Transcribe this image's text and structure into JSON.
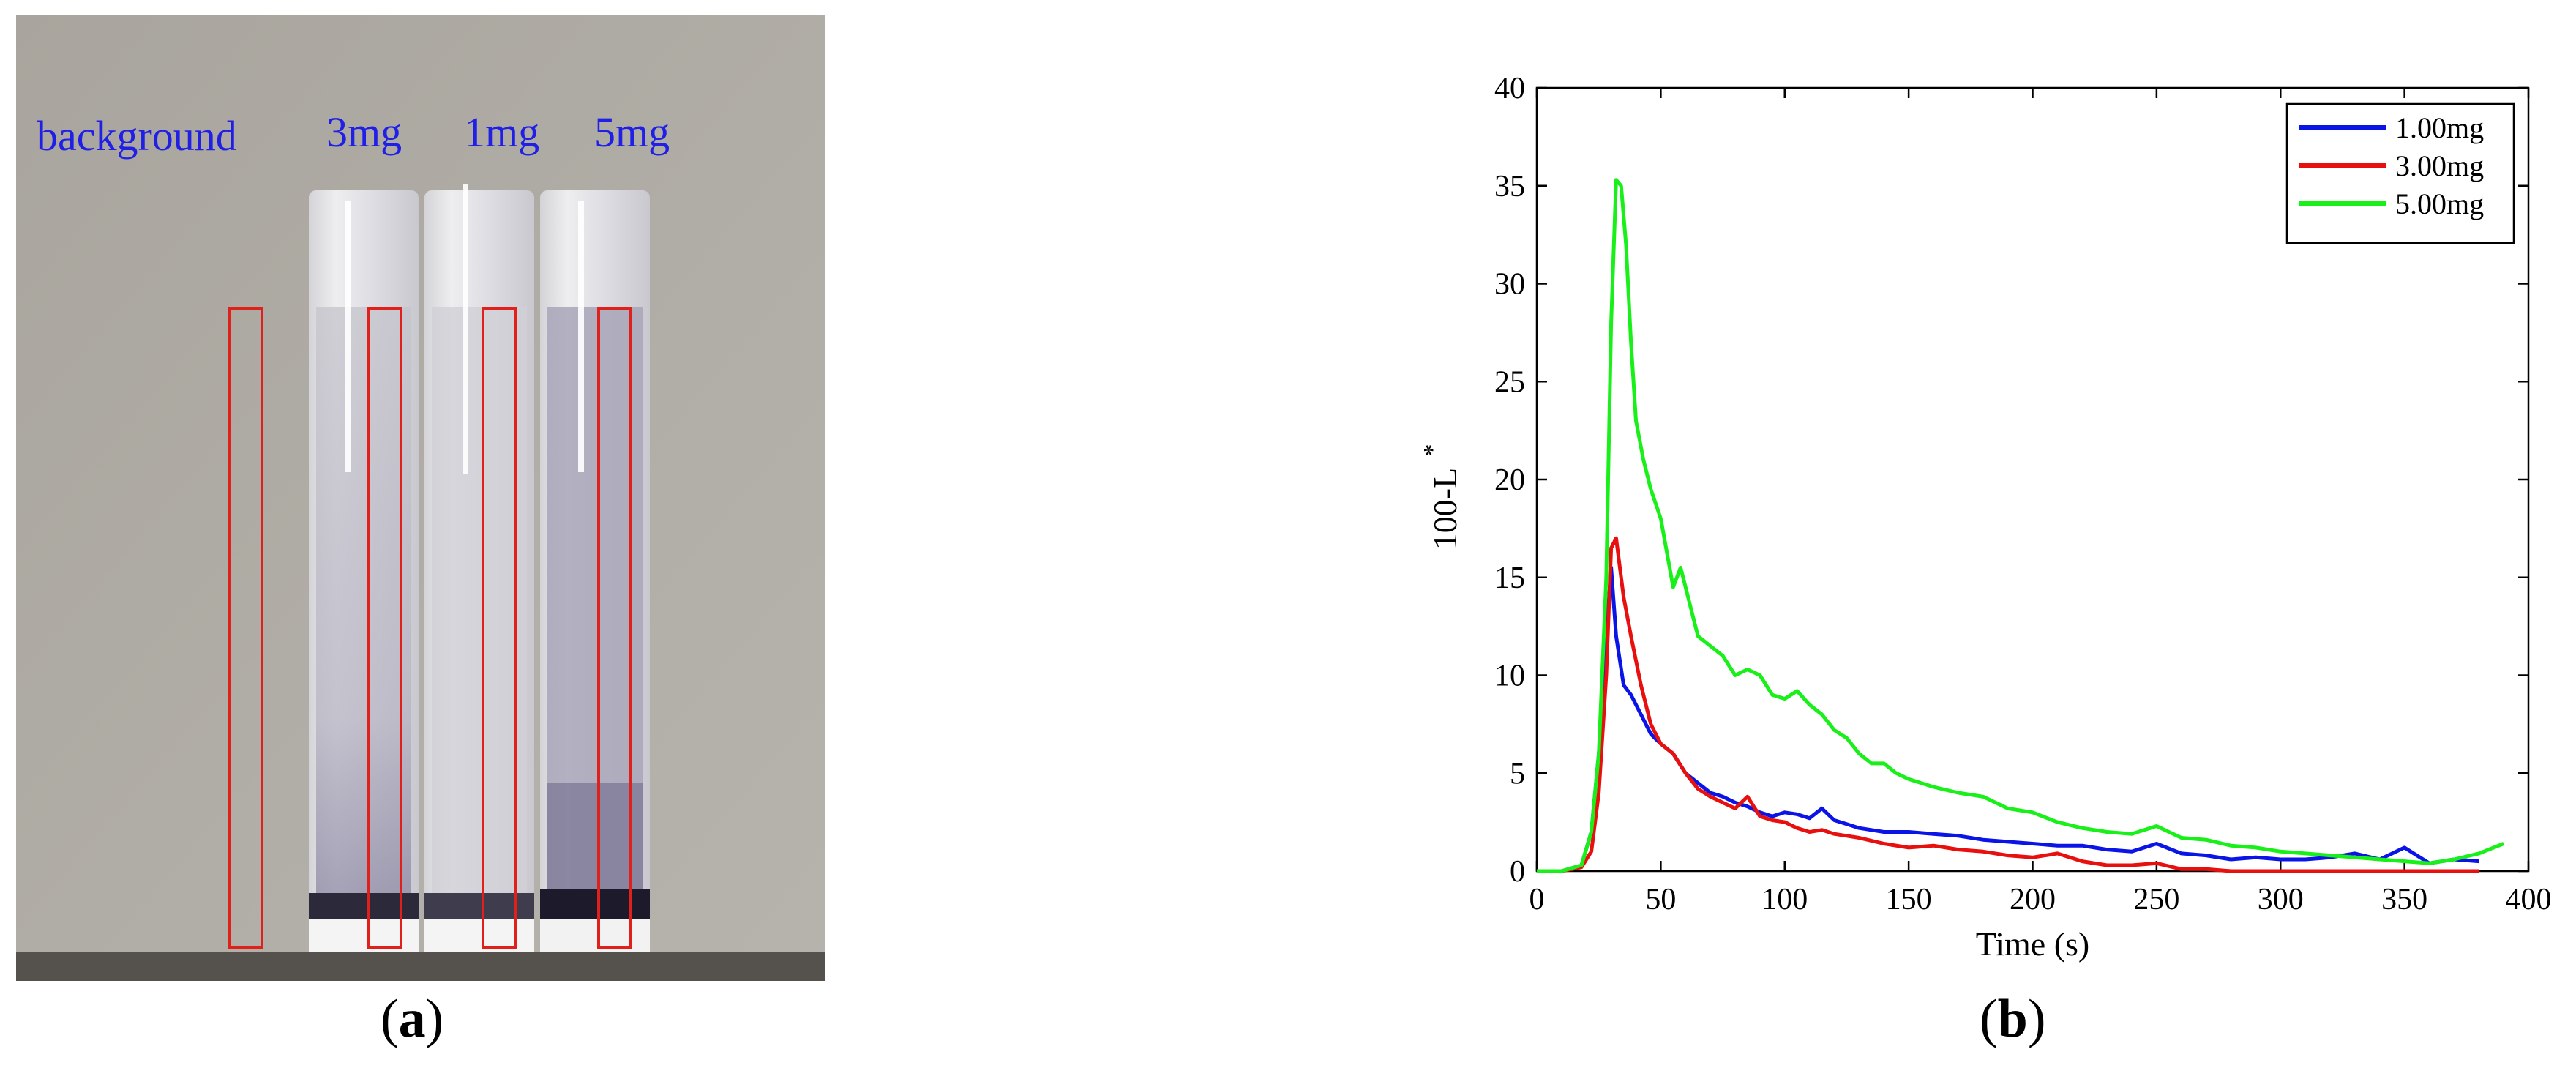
{
  "panel_a": {
    "labels": [
      "background",
      "3mg",
      "1mg",
      "5mg"
    ],
    "label_color": "#1f1fe6",
    "roi_color": "#e0201a",
    "caption_open": "(",
    "caption_letter": "a",
    "caption_close": ")"
  },
  "panel_b": {
    "caption_open": "(",
    "caption_letter": "b",
    "caption_close": ")"
  },
  "chart_data": {
    "type": "line",
    "xlabel": "Time (s)",
    "ylabel": "100-L",
    "ylabel_superscript": "*",
    "xlim": [
      0,
      400
    ],
    "ylim": [
      0,
      40
    ],
    "xticks": [
      0,
      50,
      100,
      150,
      200,
      250,
      300,
      350,
      400
    ],
    "yticks": [
      0,
      5,
      10,
      15,
      20,
      25,
      30,
      35,
      40
    ],
    "grid": false,
    "legend_position": "top-right",
    "series": [
      {
        "name": "1.00mg",
        "color": "#0a14e6",
        "x": [
          0,
          10,
          18,
          22,
          25,
          28,
          30,
          32,
          35,
          38,
          42,
          46,
          50,
          55,
          60,
          65,
          70,
          75,
          80,
          85,
          90,
          95,
          100,
          105,
          110,
          115,
          120,
          125,
          130,
          140,
          150,
          160,
          170,
          180,
          190,
          200,
          210,
          220,
          230,
          240,
          250,
          260,
          270,
          280,
          290,
          300,
          310,
          320,
          330,
          340,
          350,
          360,
          370,
          380
        ],
        "y": [
          0,
          0,
          0.3,
          2,
          6,
          12,
          15.5,
          12,
          9.5,
          9,
          8,
          7,
          6.5,
          6,
          5,
          4.5,
          4,
          3.8,
          3.5,
          3.3,
          3,
          2.8,
          3,
          2.9,
          2.7,
          3.2,
          2.6,
          2.4,
          2.2,
          2.0,
          2.0,
          1.9,
          1.8,
          1.6,
          1.5,
          1.4,
          1.3,
          1.3,
          1.1,
          1.0,
          1.4,
          0.9,
          0.8,
          0.6,
          0.7,
          0.6,
          0.6,
          0.7,
          0.9,
          0.6,
          1.2,
          0.4,
          0.6,
          0.5
        ]
      },
      {
        "name": "3.00mg",
        "color": "#e80f0f",
        "x": [
          0,
          10,
          18,
          22,
          25,
          28,
          30,
          32,
          35,
          38,
          42,
          46,
          50,
          55,
          60,
          65,
          70,
          75,
          80,
          85,
          90,
          95,
          100,
          105,
          110,
          115,
          120,
          125,
          130,
          140,
          150,
          160,
          170,
          180,
          190,
          200,
          210,
          220,
          230,
          240,
          250,
          260,
          270,
          280,
          290,
          300,
          310,
          320,
          330,
          340,
          350,
          360,
          370,
          380
        ],
        "y": [
          0,
          0,
          0.2,
          1,
          4,
          10,
          16.5,
          17,
          14,
          12,
          9.5,
          7.5,
          6.5,
          6,
          5,
          4.2,
          3.8,
          3.5,
          3.2,
          3.8,
          2.8,
          2.6,
          2.5,
          2.2,
          2.0,
          2.1,
          1.9,
          1.8,
          1.7,
          1.4,
          1.2,
          1.3,
          1.1,
          1.0,
          0.8,
          0.7,
          0.9,
          0.5,
          0.3,
          0.3,
          0.4,
          0.1,
          0.1,
          0,
          0,
          0,
          0,
          0,
          0,
          0,
          0,
          0,
          0,
          0
        ]
      },
      {
        "name": "5.00mg",
        "color": "#19f019",
        "x": [
          0,
          10,
          18,
          22,
          25,
          28,
          30,
          32,
          34,
          36,
          38,
          40,
          43,
          46,
          50,
          55,
          58,
          62,
          65,
          70,
          75,
          80,
          85,
          90,
          95,
          100,
          105,
          110,
          115,
          120,
          125,
          130,
          135,
          140,
          145,
          150,
          160,
          170,
          180,
          190,
          200,
          210,
          220,
          230,
          240,
          250,
          260,
          270,
          280,
          290,
          300,
          310,
          320,
          330,
          340,
          350,
          360,
          370,
          380,
          390
        ],
        "y": [
          0,
          0,
          0.3,
          2,
          6,
          15,
          28,
          35.3,
          35,
          32,
          27,
          23,
          21,
          19.5,
          18,
          14.5,
          15.5,
          13.5,
          12,
          11.5,
          11,
          10,
          10.3,
          10,
          9,
          8.8,
          9.2,
          8.5,
          8.0,
          7.2,
          6.8,
          6.0,
          5.5,
          5.5,
          5.0,
          4.7,
          4.3,
          4.0,
          3.8,
          3.2,
          3.0,
          2.5,
          2.2,
          2.0,
          1.9,
          2.3,
          1.7,
          1.6,
          1.3,
          1.2,
          1.0,
          0.9,
          0.8,
          0.7,
          0.6,
          0.5,
          0.4,
          0.6,
          0.9,
          1.4
        ]
      }
    ]
  }
}
